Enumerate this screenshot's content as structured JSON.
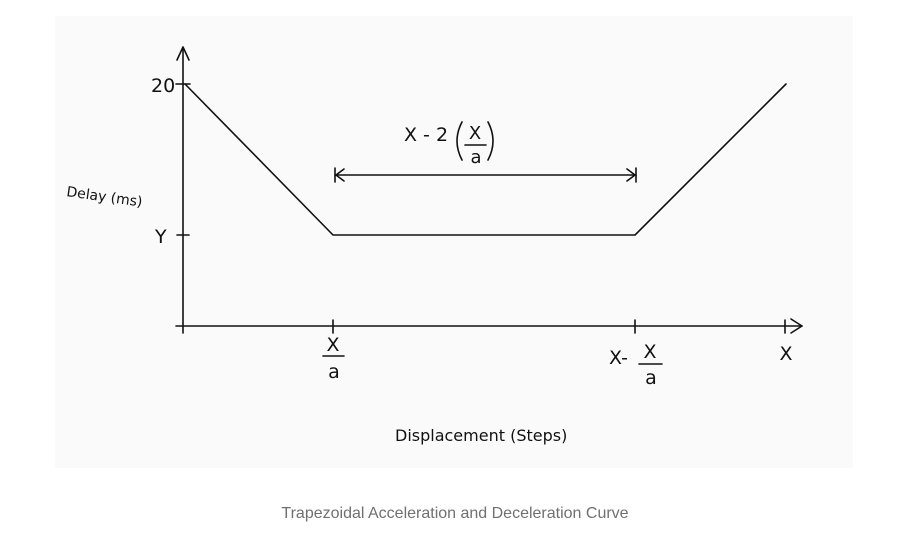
{
  "figure": {
    "caption": "Trapezoidal Acceleration and Deceleration Curve",
    "y_axis": {
      "label": "Delay (ms)",
      "ticks": [
        "20",
        "Y"
      ]
    },
    "x_axis": {
      "label": "Displacement (Steps)",
      "ticks": [
        {
          "num": "X",
          "den": "a"
        },
        {
          "prefix": "X-",
          "num": "X",
          "den": "a"
        },
        {
          "prefix": "",
          "num": "X",
          "den": ""
        }
      ]
    },
    "span": {
      "prefix": "X - 2",
      "num": "X",
      "den": "a"
    }
  },
  "colors": {
    "ink": "#111111",
    "panel": "#fafafa",
    "caption": "#707070"
  }
}
